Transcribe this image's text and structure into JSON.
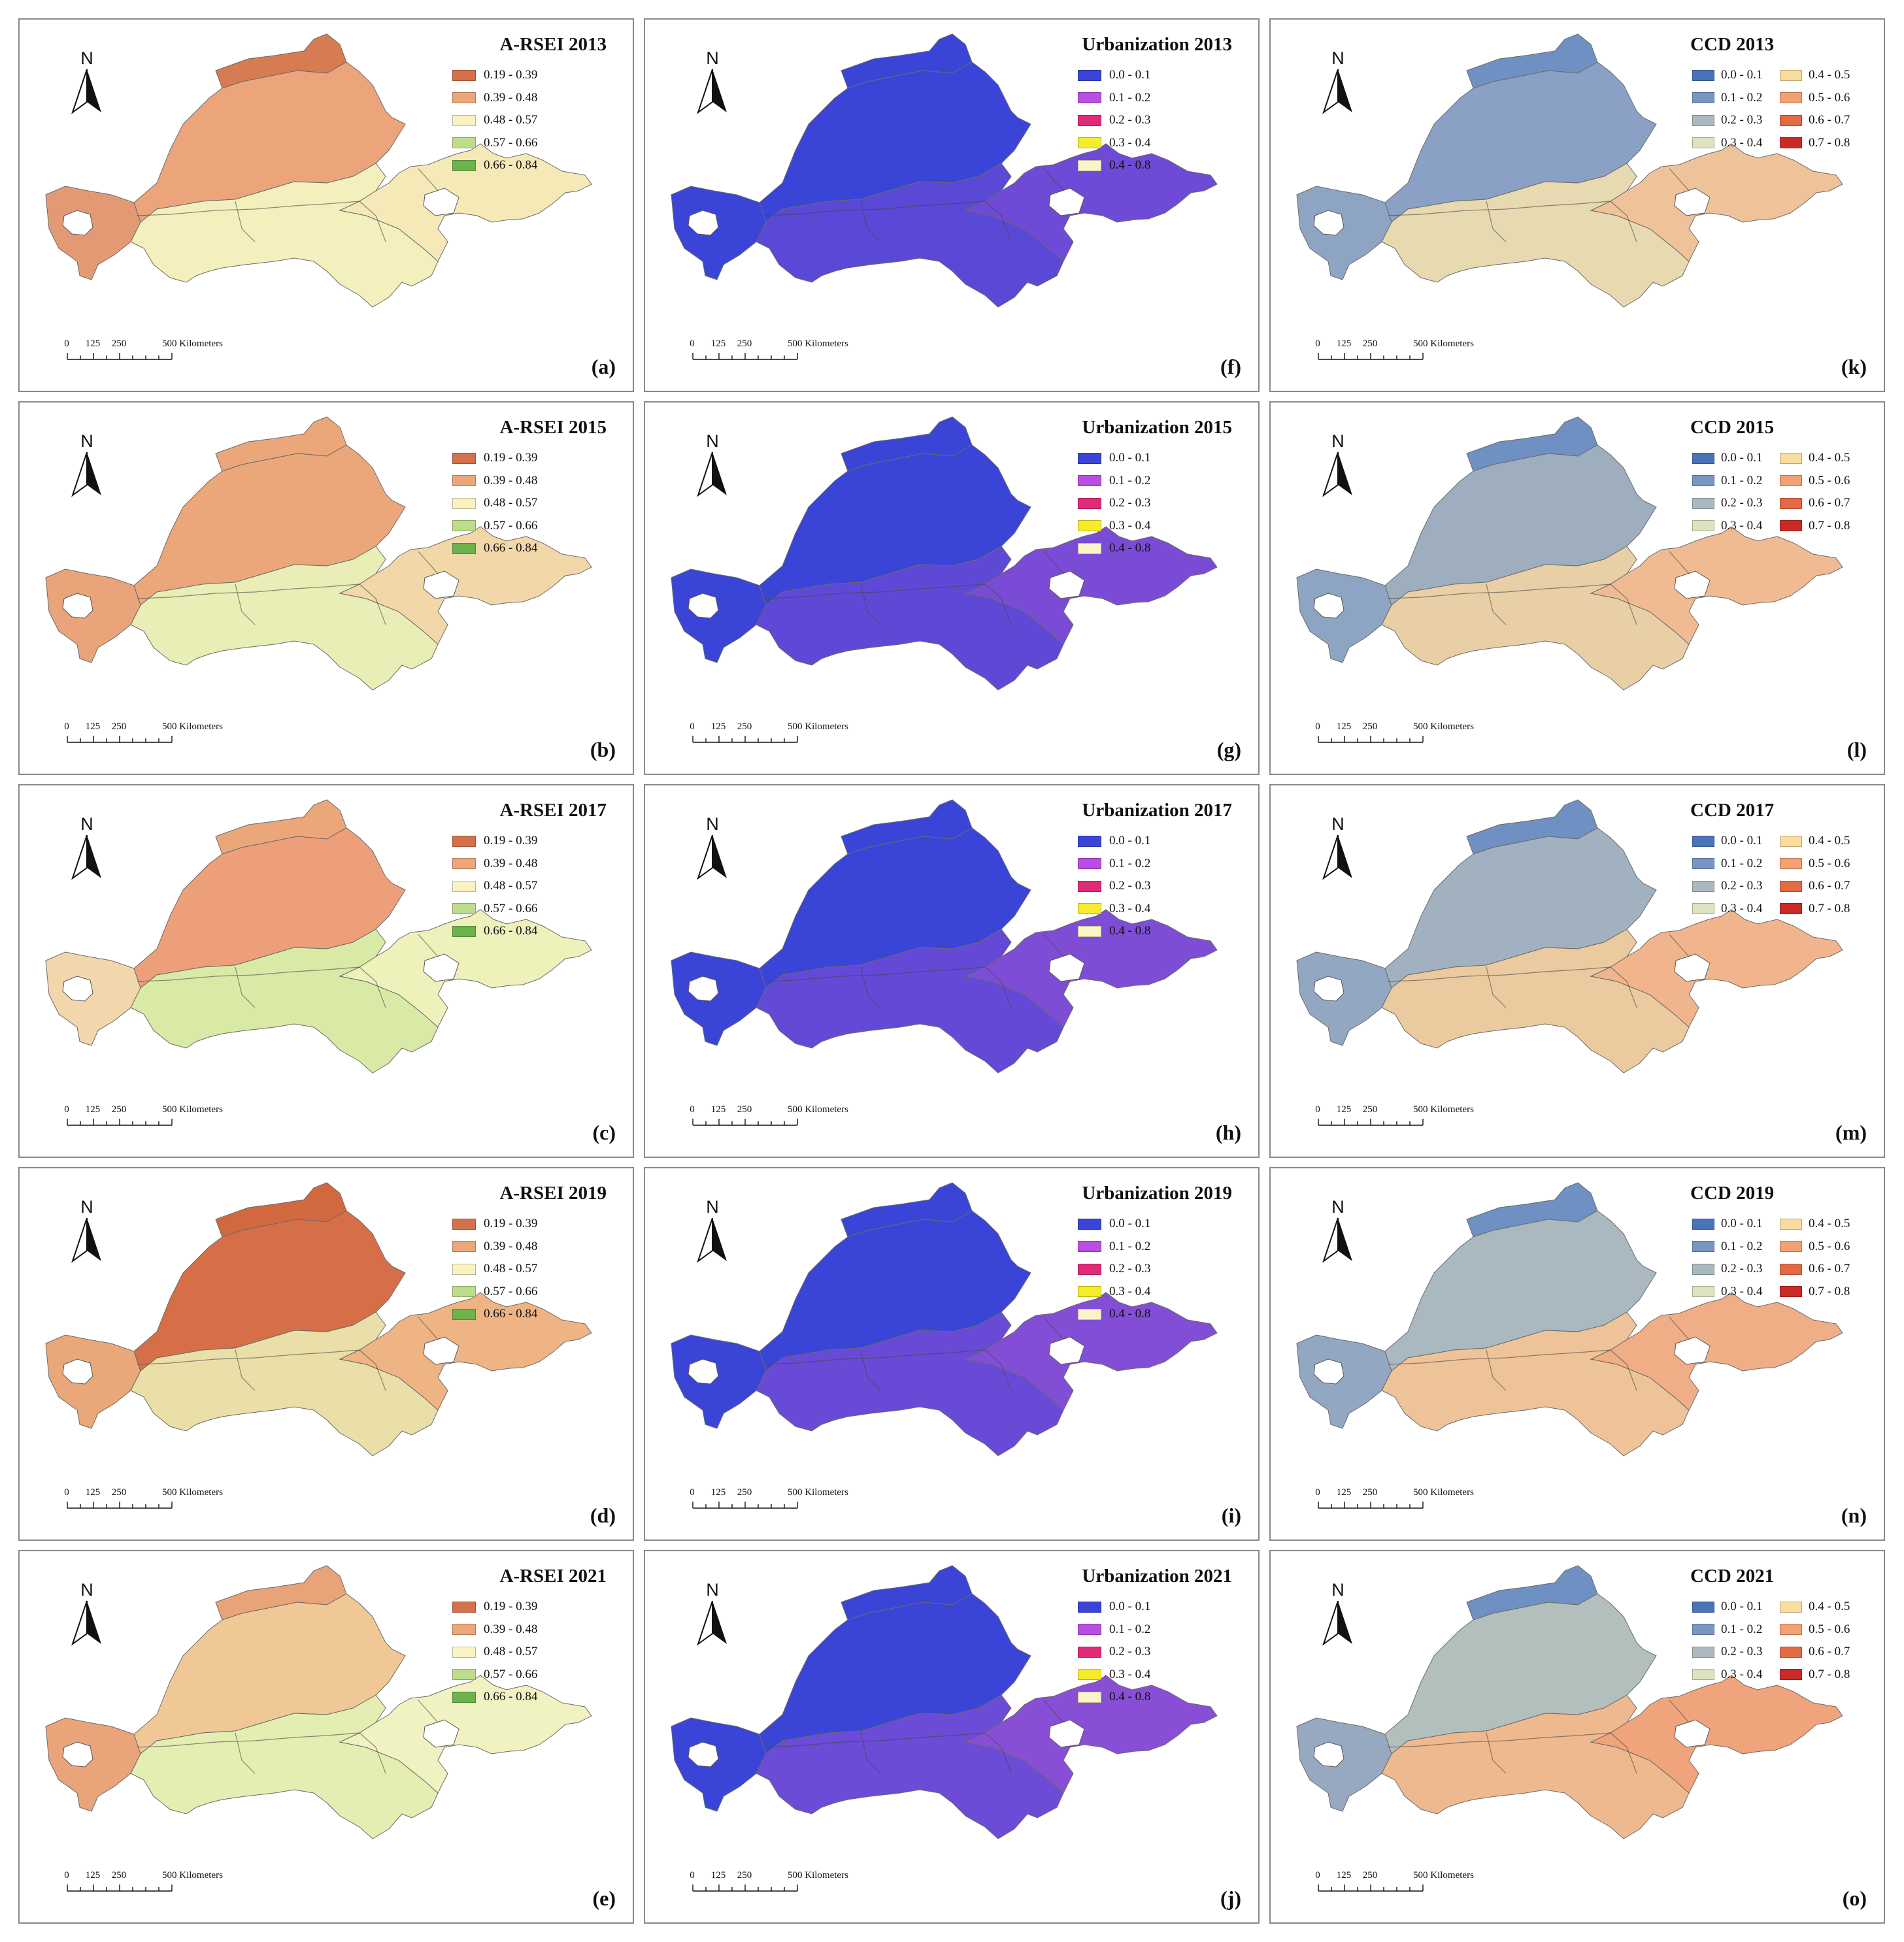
{
  "figure": {
    "north_arrow_label": "N",
    "scale_bar": {
      "ticks": [
        "0",
        "125",
        "250",
        "500 Kilometers"
      ]
    }
  },
  "legends": {
    "rsei": {
      "classes": [
        {
          "label": "0.19 - 0.39",
          "color": "#d4704a"
        },
        {
          "label": "0.39 - 0.48",
          "color": "#eba77a"
        },
        {
          "label": "0.48 - 0.57",
          "color": "#f8f3c1"
        },
        {
          "label": "0.57 - 0.66",
          "color": "#bddd8a"
        },
        {
          "label": "0.66 - 0.84",
          "color": "#6db34c"
        }
      ]
    },
    "urbanization": {
      "classes": [
        {
          "label": "0.0 - 0.1",
          "color": "#3a45d8"
        },
        {
          "label": "0.1 - 0.2",
          "color": "#b94ee0"
        },
        {
          "label": "0.2 - 0.3",
          "color": "#e02b78"
        },
        {
          "label": "0.3 - 0.4",
          "color": "#f7ec2a"
        },
        {
          "label": "0.4 - 0.8",
          "color": "#fbf4c8"
        }
      ]
    },
    "ccd": {
      "classes": [
        {
          "label": "0.0 - 0.1",
          "color": "#4874b8"
        },
        {
          "label": "0.4 - 0.5",
          "color": "#f9dd9e"
        },
        {
          "label": "0.1 - 0.2",
          "color": "#7896c2"
        },
        {
          "label": "0.5 - 0.6",
          "color": "#f2a272"
        },
        {
          "label": "0.2 - 0.3",
          "color": "#aab8bf"
        },
        {
          "label": "0.6 - 0.7",
          "color": "#e36a44"
        },
        {
          "label": "0.3 - 0.4",
          "color": "#dee3bf"
        },
        {
          "label": "0.7 - 0.8",
          "color": "#cc2a26"
        }
      ]
    }
  },
  "panels": [
    {
      "label": "(a)",
      "title": "A-RSEI 2013",
      "kind": "rsei",
      "colors": {
        "north": "#d77b52",
        "body": "#eca57b",
        "south": "#f3f0bd",
        "east": "#f5eab7",
        "tail": "#e39a74"
      }
    },
    {
      "label": "(b)",
      "title": "A-RSEI 2015",
      "kind": "rsei",
      "colors": {
        "north": "#eba77a",
        "body": "#eba77a",
        "south": "#e9edb6",
        "east": "#f2d8a8",
        "tail": "#e9a47a"
      }
    },
    {
      "label": "(c)",
      "title": "A-RSEI 2017",
      "kind": "rsei",
      "colors": {
        "north": "#eba77a",
        "body": "#ec9f78",
        "south": "#d9eaa6",
        "east": "#eff1bb",
        "tail": "#f1d7ab"
      }
    },
    {
      "label": "(d)",
      "title": "A-RSEI 2019",
      "kind": "rsei",
      "colors": {
        "north": "#d2683f",
        "body": "#d66f48",
        "south": "#eadfa8",
        "east": "#efb484",
        "tail": "#e9a77a"
      }
    },
    {
      "label": "(e)",
      "title": "A-RSEI 2021",
      "kind": "rsei",
      "colors": {
        "north": "#e9a378",
        "body": "#efc896",
        "south": "#e4edb2",
        "east": "#f1f2c1",
        "tail": "#eaa47a"
      }
    },
    {
      "label": "(f)",
      "title": "Urbanization 2013",
      "kind": "urb",
      "colors": {
        "north": "#3a45d8",
        "body": "#3a45d8",
        "south": "#5a48d6",
        "east": "#6e4ad6",
        "tail": "#3a45d8"
      }
    },
    {
      "label": "(g)",
      "title": "Urbanization 2015",
      "kind": "urb",
      "colors": {
        "north": "#3a45d8",
        "body": "#3a45d8",
        "south": "#6048d6",
        "east": "#7a4cd6",
        "tail": "#3a45d8"
      }
    },
    {
      "label": "(h)",
      "title": "Urbanization 2017",
      "kind": "urb",
      "colors": {
        "north": "#3a45d8",
        "body": "#3a45d8",
        "south": "#6449d6",
        "east": "#7e4dd6",
        "tail": "#3a45d8"
      }
    },
    {
      "label": "(i)",
      "title": "Urbanization 2019",
      "kind": "urb",
      "colors": {
        "north": "#3a45d8",
        "body": "#3a45d8",
        "south": "#684ad6",
        "east": "#834ed6",
        "tail": "#3a45d8"
      }
    },
    {
      "label": "(j)",
      "title": "Urbanization 2021",
      "kind": "urb",
      "colors": {
        "north": "#3a45d8",
        "body": "#3a45d8",
        "south": "#6c4bd6",
        "east": "#884fd6",
        "tail": "#3a45d8"
      }
    },
    {
      "label": "(k)",
      "title": "CCD 2013",
      "kind": "ccd",
      "colors": {
        "north": "#6f90c2",
        "body": "#8aa0c4",
        "south": "#e7d9b0",
        "east": "#efc39a",
        "tail": "#8ea4c3"
      }
    },
    {
      "label": "(l)",
      "title": "CCD 2015",
      "kind": "ccd",
      "colors": {
        "north": "#6f90c2",
        "body": "#9eaebf",
        "south": "#e9cfa6",
        "east": "#f0bb92",
        "tail": "#8ea4c3"
      }
    },
    {
      "label": "(m)",
      "title": "CCD 2017",
      "kind": "ccd",
      "colors": {
        "north": "#6f90c2",
        "body": "#a2b1bf",
        "south": "#ebcaa0",
        "east": "#f0b58c",
        "tail": "#92a7c2"
      }
    },
    {
      "label": "(n)",
      "title": "CCD 2019",
      "kind": "ccd",
      "colors": {
        "north": "#6f90c2",
        "body": "#aab8bf",
        "south": "#eec39a",
        "east": "#f0ae86",
        "tail": "#92a7c2"
      }
    },
    {
      "label": "(o)",
      "title": "CCD 2021",
      "kind": "ccd",
      "colors": {
        "north": "#6f90c2",
        "body": "#b3bfbd",
        "south": "#efb98f",
        "east": "#efa47c",
        "tail": "#96a9c1"
      }
    }
  ]
}
